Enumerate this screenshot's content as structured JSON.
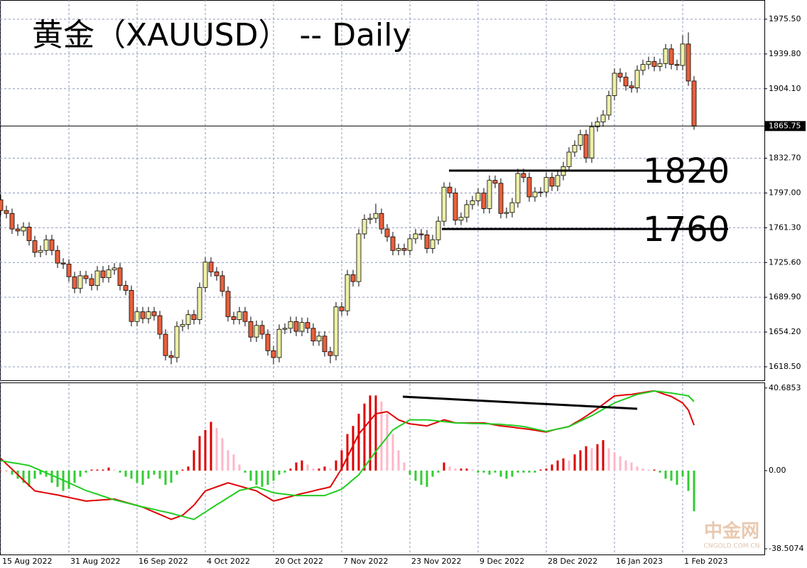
{
  "chart_data": [
    {
      "type": "candlestick",
      "title": "黄金（XAUUSD） -- Daily",
      "categories": [
        "15 Aug 2022",
        null,
        null,
        null,
        null,
        null,
        null,
        null,
        null,
        null,
        null,
        null,
        "31 Aug 2022",
        null,
        null,
        null,
        null,
        null,
        null,
        null,
        null,
        null,
        null,
        null,
        "16 Sep 2022",
        null,
        null,
        null,
        null,
        null,
        null,
        null,
        null,
        null,
        null,
        null,
        "4 Oct 2022",
        null,
        null,
        null,
        null,
        null,
        null,
        null,
        null,
        null,
        null,
        null,
        "20 Oct 2022",
        null,
        null,
        null,
        null,
        null,
        null,
        null,
        null,
        null,
        null,
        null,
        "7 Nov 2022",
        null,
        null,
        null,
        null,
        null,
        null,
        null,
        null,
        null,
        null,
        null,
        "23 Nov 2022",
        null,
        null,
        null,
        null,
        null,
        null,
        null,
        null,
        null,
        null,
        null,
        "9 Dec 2022",
        null,
        null,
        null,
        null,
        null,
        null,
        null,
        null,
        null,
        null,
        null,
        "28 Dec 2022",
        null,
        null,
        null,
        null,
        null,
        null,
        null,
        null,
        null,
        null,
        null,
        "16 Jan 2023",
        null,
        null,
        null,
        null,
        null,
        null,
        null,
        null,
        null,
        null,
        null,
        "1 Feb 2023",
        null,
        null
      ],
      "open": [
        1790,
        1779,
        1776,
        1760,
        1758,
        1762,
        1748,
        1736,
        1738,
        1749,
        1738,
        1725,
        1724,
        1711,
        1699,
        1712,
        1709,
        1702,
        1717,
        1710,
        1718,
        1720,
        1702,
        1697,
        1665,
        1675,
        1668,
        1675,
        1671,
        1652,
        1630,
        1628,
        1660,
        1662,
        1672,
        1667,
        1700,
        1726,
        1716,
        1712,
        1696,
        1670,
        1667,
        1675,
        1665,
        1649,
        1661,
        1652,
        1635,
        1628,
        1657,
        1658,
        1665,
        1655,
        1664,
        1658,
        1645,
        1650,
        1634,
        1630,
        1680,
        1676,
        1713,
        1706,
        1755,
        1770,
        1771,
        1776,
        1760,
        1752,
        1738,
        1740,
        1738,
        1750,
        1755,
        1754,
        1740,
        1749,
        1768,
        1803,
        1797,
        1769,
        1772,
        1785,
        1789,
        1797,
        1781,
        1810,
        1807,
        1776,
        1777,
        1787,
        1817,
        1813,
        1793,
        1798,
        1798,
        1813,
        1804,
        1815,
        1824,
        1839,
        1846,
        1857,
        1833,
        1865,
        1870,
        1877,
        1897,
        1920,
        1916,
        1907,
        1905,
        1923,
        1929,
        1932,
        1927,
        1930,
        1945,
        1929,
        1928,
        1950,
        1912
      ],
      "high": [
        1795,
        1784,
        1781,
        1765,
        1767,
        1767,
        1753,
        1743,
        1754,
        1754,
        1743,
        1730,
        1729,
        1716,
        1717,
        1717,
        1714,
        1722,
        1722,
        1723,
        1725,
        1725,
        1707,
        1702,
        1680,
        1680,
        1680,
        1680,
        1676,
        1657,
        1635,
        1665,
        1667,
        1677,
        1677,
        1705,
        1731,
        1731,
        1721,
        1717,
        1701,
        1675,
        1680,
        1680,
        1670,
        1666,
        1666,
        1657,
        1640,
        1662,
        1663,
        1670,
        1670,
        1669,
        1669,
        1663,
        1655,
        1655,
        1639,
        1685,
        1685,
        1718,
        1718,
        1760,
        1775,
        1776,
        1786,
        1781,
        1765,
        1757,
        1745,
        1745,
        1755,
        1760,
        1760,
        1759,
        1754,
        1773,
        1808,
        1808,
        1802,
        1777,
        1790,
        1794,
        1802,
        1802,
        1815,
        1815,
        1812,
        1782,
        1792,
        1822,
        1822,
        1818,
        1803,
        1803,
        1818,
        1818,
        1820,
        1829,
        1844,
        1851,
        1862,
        1862,
        1870,
        1875,
        1882,
        1902,
        1925,
        1925,
        1921,
        1912,
        1928,
        1934,
        1937,
        1937,
        1935,
        1950,
        1950,
        1934,
        1959,
        1962,
        1917
      ],
      "low": [
        1774,
        1771,
        1755,
        1753,
        1753,
        1743,
        1731,
        1731,
        1733,
        1733,
        1720,
        1719,
        1706,
        1694,
        1694,
        1704,
        1697,
        1697,
        1705,
        1705,
        1713,
        1697,
        1692,
        1660,
        1660,
        1663,
        1663,
        1666,
        1647,
        1625,
        1621,
        1623,
        1655,
        1657,
        1662,
        1662,
        1695,
        1711,
        1707,
        1691,
        1665,
        1662,
        1662,
        1660,
        1644,
        1644,
        1647,
        1630,
        1621,
        1623,
        1652,
        1653,
        1650,
        1650,
        1653,
        1640,
        1640,
        1629,
        1622,
        1625,
        1671,
        1671,
        1701,
        1701,
        1750,
        1765,
        1766,
        1755,
        1747,
        1733,
        1733,
        1733,
        1733,
        1745,
        1749,
        1735,
        1735,
        1744,
        1763,
        1792,
        1764,
        1764,
        1767,
        1780,
        1784,
        1776,
        1776,
        1802,
        1771,
        1771,
        1772,
        1782,
        1808,
        1788,
        1788,
        1793,
        1793,
        1799,
        1799,
        1810,
        1819,
        1834,
        1841,
        1828,
        1828,
        1860,
        1865,
        1872,
        1892,
        1911,
        1902,
        1900,
        1900,
        1918,
        1924,
        1922,
        1922,
        1925,
        1924,
        1923,
        1923,
        1907,
        1862
      ],
      "close": [
        1779,
        1776,
        1760,
        1758,
        1762,
        1748,
        1736,
        1738,
        1749,
        1738,
        1725,
        1724,
        1711,
        1699,
        1712,
        1709,
        1702,
        1717,
        1710,
        1718,
        1720,
        1702,
        1697,
        1665,
        1675,
        1668,
        1675,
        1671,
        1652,
        1630,
        1628,
        1660,
        1662,
        1672,
        1667,
        1700,
        1726,
        1716,
        1712,
        1696,
        1670,
        1667,
        1675,
        1665,
        1649,
        1661,
        1652,
        1635,
        1628,
        1657,
        1658,
        1665,
        1655,
        1664,
        1658,
        1645,
        1650,
        1634,
        1630,
        1680,
        1676,
        1713,
        1706,
        1755,
        1770,
        1771,
        1776,
        1760,
        1752,
        1738,
        1740,
        1738,
        1750,
        1755,
        1754,
        1740,
        1749,
        1768,
        1803,
        1797,
        1769,
        1772,
        1785,
        1789,
        1797,
        1781,
        1810,
        1807,
        1776,
        1777,
        1787,
        1817,
        1813,
        1793,
        1798,
        1798,
        1813,
        1804,
        1815,
        1824,
        1839,
        1846,
        1857,
        1833,
        1865,
        1870,
        1877,
        1897,
        1920,
        1916,
        1907,
        1905,
        1923,
        1929,
        1932,
        1927,
        1930,
        1945,
        1929,
        1928,
        1950,
        1912,
        1865.75
      ],
      "up_color": "#eef0a8",
      "down_color": "#e8603c",
      "ylim": [
        1604.6,
        1995.2
      ],
      "yticks": [
        {
          "value": 1618.5,
          "label": "1618.50"
        },
        {
          "value": 1654.2,
          "label": "1654.20"
        },
        {
          "value": 1689.9,
          "label": "1689.90"
        },
        {
          "value": 1725.6,
          "label": "1725.60"
        },
        {
          "value": 1761.3,
          "label": "1761.30"
        },
        {
          "value": 1797,
          "label": "1797.00"
        },
        {
          "value": 1832.7,
          "label": "1832.70"
        },
        {
          "value": 1904.1,
          "label": "1904.10"
        },
        {
          "value": 1939.8,
          "label": "1939.80"
        },
        {
          "value": 1975.5,
          "label": "1975.50"
        }
      ],
      "current_price": 1865.75,
      "levels": [
        1820,
        1760
      ],
      "grid": true
    },
    {
      "type": "macd",
      "histogram": [
        0,
        0,
        -2,
        -4,
        -6,
        -8,
        -4,
        -2,
        -3,
        -6,
        -8,
        -10,
        -9,
        -6,
        -3,
        -1,
        0.5,
        0.5,
        0.5,
        1.5,
        0.5,
        -1,
        -3,
        -4,
        -6,
        -7,
        -4,
        -2,
        -4,
        -7,
        -6,
        -2,
        0.5,
        2,
        10,
        17,
        20,
        24,
        21,
        16,
        10,
        8,
        3,
        -1,
        -5,
        -7,
        -8,
        -7,
        -5,
        -2,
        -1,
        1,
        4,
        5,
        3,
        1,
        1,
        2,
        1,
        5,
        10,
        18,
        22,
        28,
        33,
        37,
        37,
        34,
        28,
        18,
        10,
        4,
        -2,
        -5,
        -7,
        -8,
        -3,
        -1,
        4,
        2,
        1,
        1,
        1,
        0.5,
        -1,
        -1,
        -2,
        -1,
        -3,
        -4,
        -3,
        -1,
        -1,
        -1,
        -1,
        0.5,
        1,
        3,
        5,
        6,
        5,
        8,
        10,
        12,
        11,
        13,
        15,
        11,
        9,
        7,
        5,
        4,
        2,
        1,
        0.5,
        0.5,
        -1,
        -4,
        -5,
        -7,
        -3,
        -10,
        -20
      ],
      "histogram_colors": {
        "rising": "#dd0000",
        "falling": "#ffb6c8",
        "negative": "#33cc33"
      },
      "series": [
        {
          "color": "#e00000",
          "values": [
            6,
            3.3,
            0.7,
            -2,
            -4.7,
            -7.3,
            -10,
            -10.5,
            -11,
            -11.5,
            -12,
            -12.6,
            -13.2,
            -13.8,
            -14.4,
            -15,
            -14.8,
            -14.6,
            -14.4,
            -14.2,
            -14,
            -14.8,
            -15.6,
            -16.4,
            -17.2,
            -18,
            -19.2,
            -20.4,
            -21.6,
            -22.8,
            -24,
            -23,
            -22,
            -19.5,
            -17,
            -13.5,
            -10,
            -9,
            -8,
            -7,
            -6,
            -6.8,
            -7.6,
            -8.4,
            -9.2,
            -10,
            -11.7,
            -13.3,
            -15,
            -14.3,
            -13.5,
            -12.8,
            -12,
            -11.3,
            -10.7,
            -10,
            -9.3,
            -8.7,
            -8,
            -3.5,
            1,
            6.7,
            12.3,
            18,
            21.3,
            24.7,
            28,
            28.5,
            29,
            27,
            25,
            24,
            23,
            22.7,
            22.3,
            22,
            23,
            24,
            25,
            24.3,
            23.5,
            23.5,
            23.5,
            23.5,
            23.5,
            23.5,
            23,
            22.5,
            22,
            21.7,
            21.4,
            21,
            20.7,
            20.3,
            19.9,
            19.4,
            19,
            19.8,
            20.5,
            21.1,
            21.7,
            23.4,
            25,
            26.8,
            28.7,
            30.5,
            32.6,
            34.7,
            36.8,
            37,
            37.3,
            37.5,
            38,
            38.4,
            38.9,
            39.3,
            38.4,
            37.4,
            36.5,
            34.9,
            33.3,
            29.8,
            22.4
          ]
        },
        {
          "color": "#22cc22",
          "values": [
            4.9,
            4.4,
            3.9,
            3.5,
            3,
            2.5,
            1.3,
            0.1,
            -1.1,
            -2.3,
            -3.5,
            -4.8,
            -6,
            -7.3,
            -8.5,
            -9.8,
            -10.7,
            -11.6,
            -12.6,
            -13.5,
            -14.4,
            -15.1,
            -15.8,
            -16.5,
            -17.2,
            -17.9,
            -18.5,
            -19.1,
            -19.8,
            -20.4,
            -21,
            -21.8,
            -22.5,
            -23.3,
            -24,
            -22.2,
            -20.4,
            -18.6,
            -16.8,
            -15.1,
            -13.3,
            -11.6,
            -9.8,
            -9.2,
            -8.6,
            -8,
            -9,
            -9.9,
            -10.9,
            -11.3,
            -11.6,
            -12,
            -12.3,
            -12.3,
            -12.3,
            -12.3,
            -12.3,
            -12.3,
            -11.2,
            -10.2,
            -9.1,
            -6.8,
            -4.4,
            -2.1,
            1.8,
            5.6,
            9.5,
            13,
            16.5,
            20,
            21.7,
            23.3,
            25,
            25,
            25,
            25,
            24.7,
            24.4,
            24.1,
            23.8,
            23.5,
            23.4,
            23.3,
            23.2,
            23.2,
            23.1,
            23,
            22.9,
            22.8,
            22.5,
            22.3,
            22,
            21.7,
            21.1,
            20.5,
            19.9,
            19.3,
            19.9,
            20.5,
            21.1,
            21.7,
            23,
            24.4,
            25.7,
            27,
            28.6,
            30.2,
            31.7,
            33.3,
            34.4,
            35.4,
            36.5,
            37.5,
            38.1,
            38.6,
            39.2,
            38.9,
            38.5,
            38.2,
            37.7,
            37.3,
            36.8,
            34
          ]
        }
      ],
      "ylim": [
        -41.3,
        43.4
      ],
      "yticks": [
        -38.5074,
        {
          "value": 0,
          "label": "0.00"
        },
        40.6853
      ]
    }
  ],
  "watermark": {
    "name": "中金网",
    "site": "CNGOLD.COM.CN"
  }
}
